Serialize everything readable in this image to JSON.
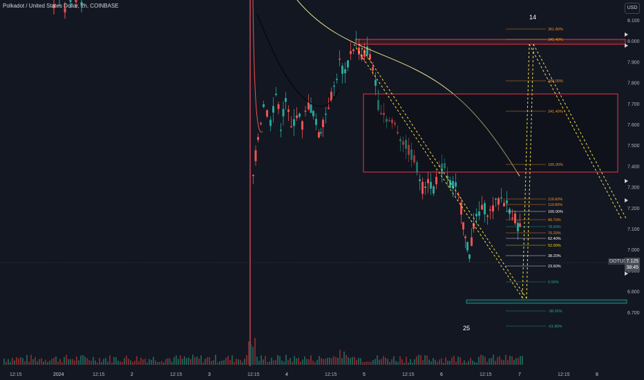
{
  "header": {
    "symbol_title": "Polkadot / United States Dollar, 2h, COINBASE",
    "currency_button": "USD"
  },
  "price_axis": {
    "ticks": [
      "8.100",
      "8.000",
      "7.900",
      "7.800",
      "7.700",
      "7.600",
      "7.500",
      "7.400",
      "7.300",
      "7.200",
      "7.100",
      "7.000",
      "6.900",
      "6.800",
      "6.700"
    ]
  },
  "time_axis": {
    "ticks": [
      "12:15",
      "2024",
      "12:15",
      "2",
      "12:15",
      "3",
      "12:15",
      "4",
      "12:15",
      "5",
      "12:15",
      "6",
      "12:15",
      "7",
      "12:15",
      "8"
    ]
  },
  "current_price": {
    "ticker": "DOTUSD",
    "value": "7.125",
    "countdown": "38:45"
  },
  "annotations": {
    "top_number": "14",
    "bottom_number": "25"
  },
  "fib_levels": [
    {
      "label": "361.80%",
      "color": "#f7931a"
    },
    {
      "label": "345.40%",
      "color": "#f7931a"
    },
    {
      "label": "289.00%",
      "color": "#f7931a"
    },
    {
      "label": "241.40%",
      "color": "#f7931a"
    },
    {
      "label": "165.00%",
      "color": "#f7931a"
    },
    {
      "label": "116.60%",
      "color": "#f7931a"
    },
    {
      "label": "110.80%",
      "color": "#f7931a"
    },
    {
      "label": "100.00%",
      "color": "#ffffff"
    },
    {
      "label": "88.70%",
      "color": "#f7931a"
    },
    {
      "label": "78.60%",
      "color": "#26a69a"
    },
    {
      "label": "70.20%",
      "color": "#f7931a"
    },
    {
      "label": "62.40%",
      "color": "#ffffff"
    },
    {
      "label": "52.00%",
      "color": "#f7d51a"
    },
    {
      "label": "38.20%",
      "color": "#ffffff"
    },
    {
      "label": "23.60%",
      "color": "#ffffff"
    },
    {
      "label": "0.00%",
      "color": "#26a69a"
    },
    {
      "label": "-38.20%",
      "color": "#26a69a"
    },
    {
      "label": "-61.80%",
      "color": "#26a69a"
    }
  ],
  "colors": {
    "background": "#131722",
    "up": "#26a69a",
    "down": "#ef5350",
    "ma_yellow": "#e8df8a",
    "ma_dark": "#0b0d12",
    "zone_red": "#f23645",
    "dashed_yellow": "#f5e44a"
  }
}
